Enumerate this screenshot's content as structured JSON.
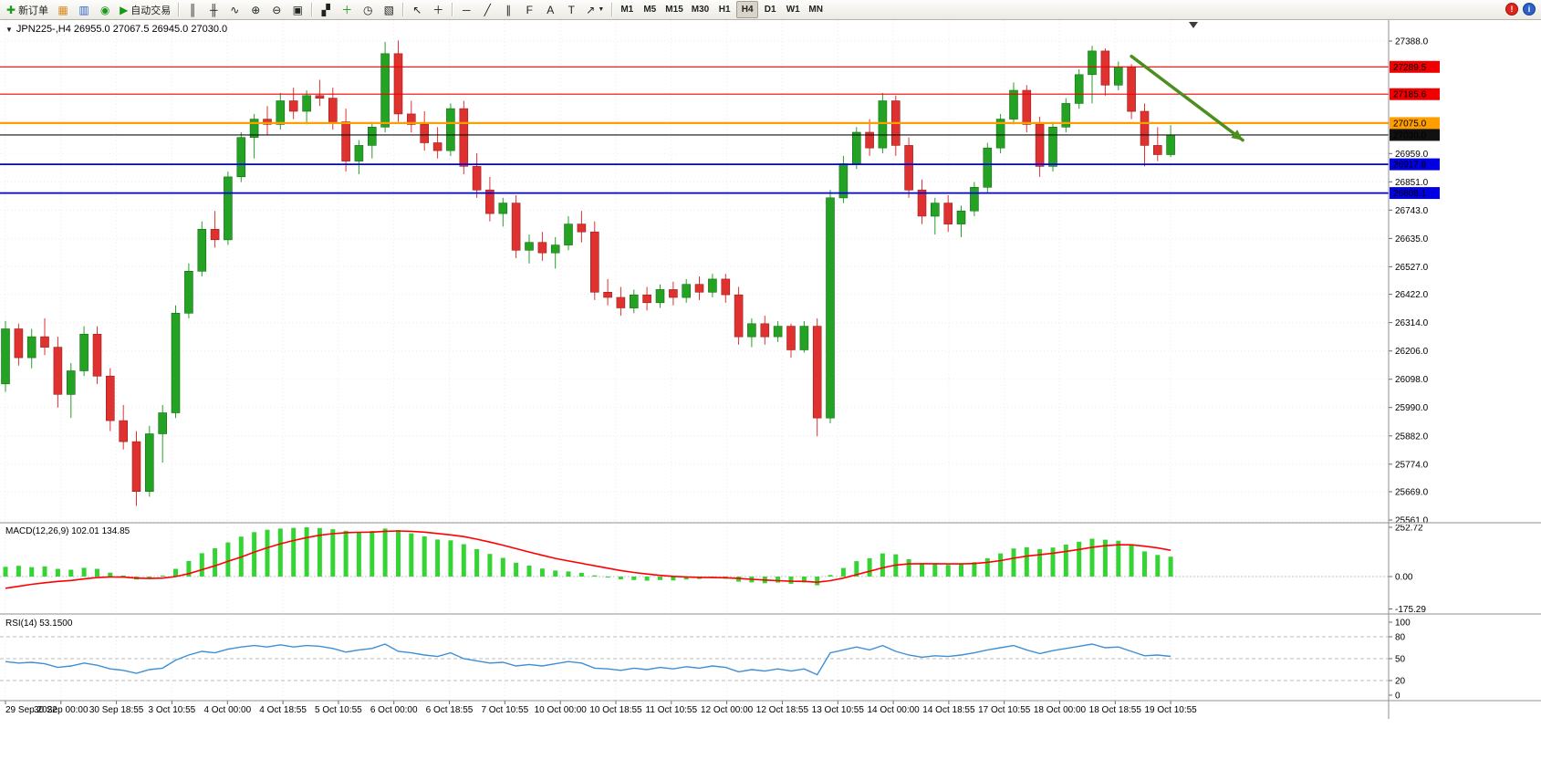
{
  "toolbar": {
    "new_order": "新订单",
    "autotrading": "自动交易",
    "timeframes": [
      "M1",
      "M5",
      "M15",
      "M30",
      "H1",
      "H4",
      "D1",
      "W1",
      "MN"
    ],
    "active_timeframe": "H4"
  },
  "chart": {
    "symbol_period": "JPN225-,H4",
    "ohlc_title": "JPN225-,H4 26955.0 27067.5 26945.0 27030.0"
  },
  "chart_data": {
    "type": "candlestick",
    "symbol": "JPN225-",
    "timeframe": "H4",
    "current_ohlc": {
      "open": 26955.0,
      "high": 27067.5,
      "low": 26945.0,
      "close": 27030.0
    },
    "colors": {
      "bull": "#23a223",
      "bear": "#e03131",
      "macd_hist": "#35d435",
      "macd_signal": "#ff0000",
      "rsi_line": "#3e8fd6"
    },
    "price_axis": {
      "range": [
        25561.0,
        27388.0
      ],
      "gridline_labels": [
        27388.0,
        26959.0,
        26851.0,
        26743.0,
        26635.0,
        26527.0,
        26422.0,
        26314.0,
        26206.0,
        26098.0,
        25990.0,
        25882.0,
        25774.0,
        25669.0,
        25561.0
      ]
    },
    "time_labels": [
      "29 Sep 2022",
      "30 Sep 00:00",
      "30 Sep 18:55",
      "3 Oct 10:55",
      "4 Oct 00:00",
      "4 Oct 18:55",
      "5 Oct 10:55",
      "6 Oct 00:00",
      "6 Oct 18:55",
      "7 Oct 10:55",
      "10 Oct 00:00",
      "10 Oct 18:55",
      "11 Oct 10:55",
      "12 Oct 00:00",
      "12 Oct 18:55",
      "13 Oct 10:55",
      "14 Oct 00:00",
      "14 Oct 18:55",
      "17 Oct 10:55",
      "18 Oct 00:00",
      "18 Oct 18:55",
      "19 Oct 10:55"
    ],
    "candles": [
      [
        26080,
        26320,
        26050,
        26290
      ],
      [
        26290,
        26310,
        26150,
        26180
      ],
      [
        26180,
        26290,
        26140,
        26260
      ],
      [
        26260,
        26330,
        26190,
        26220
      ],
      [
        26220,
        26260,
        25990,
        26040
      ],
      [
        26040,
        26160,
        25950,
        26130
      ],
      [
        26130,
        26300,
        26110,
        26270
      ],
      [
        26270,
        26300,
        26080,
        26110
      ],
      [
        26110,
        26140,
        25900,
        25940
      ],
      [
        25940,
        26000,
        25830,
        25860
      ],
      [
        25860,
        25900,
        25615,
        25670
      ],
      [
        25670,
        25920,
        25650,
        25890
      ],
      [
        25890,
        26000,
        25780,
        25970
      ],
      [
        25970,
        26380,
        25950,
        26350
      ],
      [
        26350,
        26540,
        26330,
        26510
      ],
      [
        26510,
        26700,
        26490,
        26670
      ],
      [
        26670,
        26740,
        26600,
        26630
      ],
      [
        26630,
        26890,
        26610,
        26870
      ],
      [
        26870,
        27040,
        26850,
        27020
      ],
      [
        27020,
        27110,
        26940,
        27090
      ],
      [
        27090,
        27140,
        27030,
        27070
      ],
      [
        27070,
        27190,
        27050,
        27160
      ],
      [
        27160,
        27210,
        27090,
        27120
      ],
      [
        27120,
        27200,
        27070,
        27180
      ],
      [
        27180,
        27240,
        27140,
        27170
      ],
      [
        27170,
        27210,
        27050,
        27080
      ],
      [
        27080,
        27130,
        26890,
        26930
      ],
      [
        26930,
        27010,
        26880,
        26990
      ],
      [
        26990,
        27080,
        26940,
        27060
      ],
      [
        27060,
        27385,
        27040,
        27340
      ],
      [
        27340,
        27390,
        27080,
        27110
      ],
      [
        27110,
        27160,
        27040,
        27070
      ],
      [
        27070,
        27120,
        26970,
        27000
      ],
      [
        27000,
        27060,
        26940,
        26970
      ],
      [
        26970,
        27150,
        26950,
        27130
      ],
      [
        27130,
        27160,
        26880,
        26910
      ],
      [
        26910,
        26960,
        26790,
        26820
      ],
      [
        26820,
        26870,
        26700,
        26730
      ],
      [
        26730,
        26790,
        26680,
        26770
      ],
      [
        26770,
        26800,
        26560,
        26590
      ],
      [
        26590,
        26650,
        26540,
        26620
      ],
      [
        26620,
        26660,
        26550,
        26580
      ],
      [
        26580,
        26640,
        26520,
        26610
      ],
      [
        26610,
        26720,
        26590,
        26690
      ],
      [
        26690,
        26740,
        26620,
        26660
      ],
      [
        26660,
        26700,
        26400,
        26430
      ],
      [
        26430,
        26480,
        26380,
        26410
      ],
      [
        26410,
        26450,
        26340,
        26370
      ],
      [
        26370,
        26440,
        26350,
        26420
      ],
      [
        26420,
        26450,
        26360,
        26390
      ],
      [
        26390,
        26460,
        26370,
        26440
      ],
      [
        26440,
        26470,
        26380,
        26410
      ],
      [
        26410,
        26480,
        26390,
        26460
      ],
      [
        26460,
        26490,
        26400,
        26430
      ],
      [
        26430,
        26500,
        26410,
        26480
      ],
      [
        26480,
        26500,
        26390,
        26420
      ],
      [
        26420,
        26450,
        26230,
        26260
      ],
      [
        26260,
        26330,
        26220,
        26310
      ],
      [
        26310,
        26340,
        26230,
        26260
      ],
      [
        26260,
        26320,
        26240,
        26300
      ],
      [
        26300,
        26310,
        26180,
        26210
      ],
      [
        26210,
        26320,
        26200,
        26300
      ],
      [
        26300,
        26330,
        25880,
        25950
      ],
      [
        25950,
        26820,
        25930,
        26790
      ],
      [
        26790,
        26950,
        26770,
        26920
      ],
      [
        26920,
        27060,
        26900,
        27040
      ],
      [
        27040,
        27090,
        26950,
        26980
      ],
      [
        26980,
        27190,
        26960,
        27160
      ],
      [
        27160,
        27180,
        26950,
        26990
      ],
      [
        26990,
        27020,
        26790,
        26820
      ],
      [
        26820,
        26860,
        26690,
        26720
      ],
      [
        26720,
        26790,
        26650,
        26770
      ],
      [
        26770,
        26800,
        26660,
        26690
      ],
      [
        26690,
        26760,
        26640,
        26740
      ],
      [
        26740,
        26850,
        26720,
        26830
      ],
      [
        26830,
        27000,
        26810,
        26980
      ],
      [
        26980,
        27110,
        26960,
        27090
      ],
      [
        27090,
        27230,
        27070,
        27200
      ],
      [
        27200,
        27220,
        27040,
        27070
      ],
      [
        27070,
        27100,
        26870,
        26910
      ],
      [
        26910,
        27080,
        26890,
        27060
      ],
      [
        27060,
        27170,
        27040,
        27150
      ],
      [
        27150,
        27280,
        27130,
        27260
      ],
      [
        27260,
        27370,
        27150,
        27350
      ],
      [
        27350,
        27360,
        27180,
        27220
      ],
      [
        27220,
        27310,
        27200,
        27290
      ],
      [
        27290,
        27300,
        27090,
        27120
      ],
      [
        27120,
        27150,
        26910,
        26990
      ],
      [
        26990,
        27060,
        26930,
        26955
      ],
      [
        26955,
        27067.5,
        26945,
        27030
      ]
    ],
    "hlines": [
      {
        "name": "resistance-line-1",
        "price": 27289.5,
        "label": "27289.5",
        "color": "#f00000",
        "width": 1.2
      },
      {
        "name": "resistance-line-2",
        "price": 27185.6,
        "label": "27185.6",
        "color": "#f00000",
        "width": 1.2
      },
      {
        "name": "pivot-line",
        "price": 27075.0,
        "label": "27075.0",
        "color": "#ff9e00",
        "width": 2.2
      },
      {
        "name": "current-price-line",
        "price": 27030.0,
        "label": "27030.0",
        "color": "#111111",
        "width": 1.1
      },
      {
        "name": "support-line-1",
        "price": 26917.8,
        "label": "26917.8",
        "color": "#0000e0",
        "width": 1.8
      },
      {
        "name": "support-line-2",
        "price": 26808.1,
        "label": "26808.1",
        "color": "#0000e0",
        "width": 1.8
      }
    ],
    "trend_arrow": {
      "from_index": 86,
      "from_price": 27330,
      "to_index": 94.5,
      "to_price": 27010,
      "color": "#4a8f1f",
      "width": 3.5
    },
    "macd": {
      "label": "MACD(12,26,9) 102.01 134.85",
      "params": "12,26,9",
      "value": 102.01,
      "signal_value": 134.85,
      "axis_labels": [
        252.72,
        0.0,
        -175.29
      ],
      "histogram": [
        50,
        55,
        48,
        52,
        40,
        35,
        45,
        40,
        20,
        5,
        -15,
        -10,
        5,
        40,
        80,
        120,
        145,
        175,
        205,
        228,
        240,
        246,
        250,
        252.72,
        249,
        243,
        235,
        229,
        234,
        246,
        238,
        222,
        206,
        190,
        186,
        166,
        141,
        116,
        96,
        71,
        56,
        41,
        31,
        26,
        19,
        6,
        -5,
        -14,
        -18,
        -21,
        -18,
        -20,
        -15,
        -12,
        -8,
        -11,
        -26,
        -30,
        -34,
        -31,
        -37,
        -30,
        -45,
        8,
        44,
        79,
        94,
        119,
        114,
        89,
        69,
        64,
        60,
        64,
        74,
        94,
        119,
        144,
        150,
        141,
        149,
        164,
        179,
        194,
        189,
        184,
        159,
        129,
        111,
        102.01
      ],
      "signal": [
        -60,
        -50,
        -40,
        -32,
        -25,
        -20,
        -12,
        -5,
        -2,
        -3,
        -8,
        -10,
        -8,
        0,
        15,
        35,
        55,
        78,
        100,
        125,
        148,
        168,
        185,
        200,
        212,
        220,
        225,
        227,
        228,
        232,
        234,
        232,
        228,
        221,
        214,
        205,
        192,
        177,
        161,
        143,
        126,
        109,
        93,
        80,
        68,
        55,
        43,
        31,
        21,
        13,
        6,
        1,
        -2,
        -4,
        -5,
        -6,
        -10,
        -14,
        -18,
        -21,
        -24,
        -25,
        -29,
        -21,
        -8,
        10,
        27,
        45,
        59,
        65,
        66,
        66,
        65,
        65,
        67,
        73,
        82,
        94,
        105,
        112,
        120,
        129,
        139,
        150,
        158,
        163,
        163,
        156,
        147,
        134.85
      ]
    },
    "rsi": {
      "label": "RSI(14) 53.1500",
      "period": 14,
      "value": 53.15,
      "axis_labels": [
        100,
        80,
        50,
        20,
        0
      ],
      "levels": [
        80,
        50,
        20
      ],
      "values": [
        46,
        44,
        45,
        43,
        38,
        40,
        44,
        41,
        36,
        34,
        30,
        35,
        37,
        48,
        55,
        60,
        58,
        63,
        66,
        68,
        66,
        69,
        66,
        68,
        67,
        64,
        59,
        62,
        64,
        70,
        60,
        58,
        55,
        53,
        58,
        50,
        47,
        44,
        45,
        40,
        42,
        40,
        43,
        46,
        44,
        37,
        36,
        34,
        37,
        35,
        38,
        36,
        39,
        37,
        40,
        38,
        32,
        35,
        33,
        36,
        33,
        36,
        28,
        58,
        62,
        66,
        62,
        68,
        60,
        55,
        52,
        54,
        53,
        55,
        58,
        62,
        65,
        68,
        62,
        57,
        61,
        64,
        67,
        70,
        65,
        66,
        60,
        54,
        55,
        53.15
      ]
    }
  }
}
